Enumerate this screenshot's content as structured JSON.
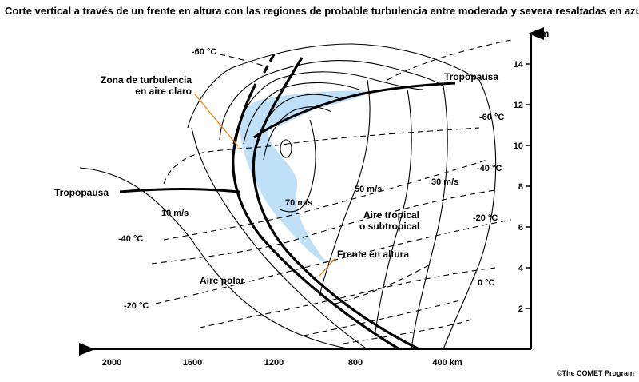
{
  "title": "Corte vertical a través de un frente en altura con las regiones de probable turbulencia entre moderada y severa resaltadas en azul",
  "credit": "©The COMET Program",
  "axes": {
    "y_unit": "km",
    "y_ticks": [
      "2",
      "4",
      "6",
      "8",
      "10",
      "12",
      "14"
    ],
    "x_ticks": [
      "2000",
      "1600",
      "1200",
      "800",
      "400 km"
    ]
  },
  "labels": {
    "tropopause_left": "Tropopausa",
    "tropopause_right": "Tropopausa",
    "cat_zone_line1": "Zona de turbulencia",
    "cat_zone_line2": "en aire claro",
    "upper_front": "Frente en altura",
    "polar_air": "Aire polar",
    "tropical_air_line1": "Aire tropical",
    "tropical_air_line2": "o subtropical"
  },
  "isotherms": [
    "-60 °C",
    "-60 °C",
    "-40 °C",
    "-40 °C",
    "-20 °C",
    "-20 °C",
    "0 °C"
  ],
  "isotachs": [
    "10 m/s",
    "30 m/s",
    "50 m/s",
    "70 m/s"
  ],
  "colors": {
    "turbulence": "#bfe0f7",
    "front_arrow": "#f07800",
    "lines": "#000000"
  }
}
